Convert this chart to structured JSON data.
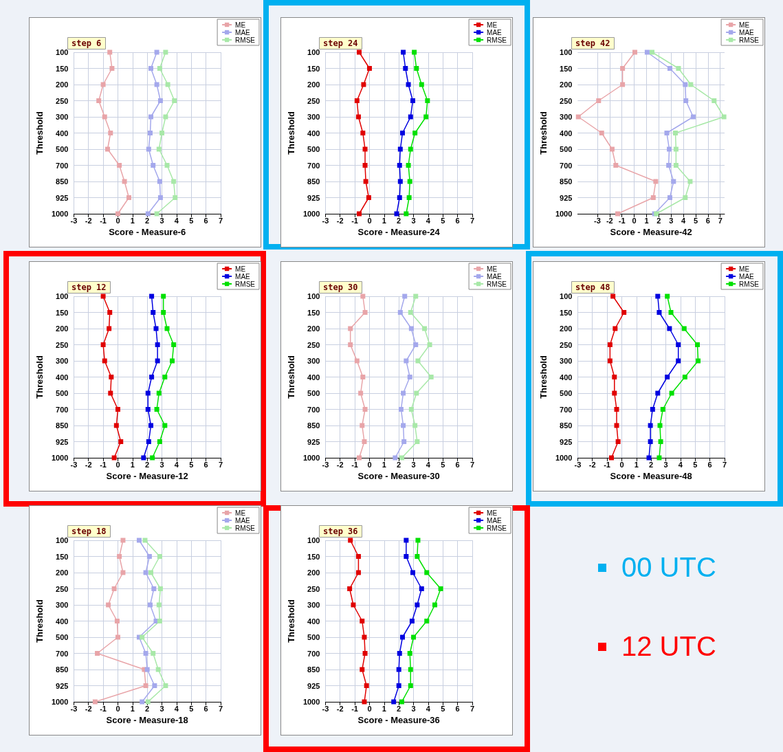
{
  "chart_data": [
    {
      "type": "line",
      "orientation": "horizontal",
      "title": "step 6",
      "xlabel": "Score - Measure-6",
      "ylabel": "Threshold",
      "categories": [
        "100",
        "150",
        "200",
        "250",
        "300",
        "400",
        "500",
        "700",
        "850",
        "925",
        "1000"
      ],
      "xlim": [
        -3,
        7
      ],
      "xticks": [
        -3,
        -2,
        -1,
        0,
        1,
        2,
        3,
        4,
        5,
        6,
        7
      ],
      "grid": true,
      "legend": "top right",
      "marker": "square",
      "series": [
        {
          "name": "ME",
          "color": "#e8a4a8",
          "values": [
            -0.55,
            -0.4,
            -1.0,
            -1.3,
            -0.9,
            -0.5,
            -0.7,
            0.1,
            0.45,
            0.75,
            0
          ]
        },
        {
          "name": "MAE",
          "color": "#a4a8ec",
          "values": [
            2.65,
            2.25,
            2.65,
            2.9,
            2.25,
            2.2,
            2.1,
            2.4,
            2.85,
            2.9,
            2.05
          ]
        },
        {
          "name": "RMSE",
          "color": "#a8e8a8",
          "values": [
            3.25,
            2.85,
            3.4,
            3.85,
            3.25,
            3.0,
            2.8,
            3.35,
            3.8,
            3.9,
            2.65
          ]
        }
      ]
    },
    {
      "type": "line",
      "orientation": "horizontal",
      "title": "step 24",
      "xlabel": "Score - Measure-24",
      "ylabel": "Threshold",
      "categories": [
        "100",
        "150",
        "200",
        "250",
        "300",
        "400",
        "500",
        "700",
        "850",
        "925",
        "1000"
      ],
      "xlim": [
        -3,
        7
      ],
      "xticks": [
        -3,
        -2,
        -1,
        0,
        1,
        2,
        3,
        4,
        5,
        6,
        7
      ],
      "grid": true,
      "legend": "top right",
      "marker": "square",
      "series": [
        {
          "name": "ME",
          "color": "#e00000",
          "values": [
            -0.7,
            0,
            -0.4,
            -0.85,
            -0.75,
            -0.45,
            -0.3,
            -0.3,
            -0.25,
            -0.05,
            -0.7
          ]
        },
        {
          "name": "MAE",
          "color": "#0000e0",
          "values": [
            2.3,
            2.45,
            2.65,
            2.95,
            2.8,
            2.25,
            2.1,
            2.05,
            2.1,
            2.05,
            1.85
          ]
        },
        {
          "name": "RMSE",
          "color": "#00e000",
          "values": [
            3.05,
            3.2,
            3.55,
            3.95,
            3.85,
            3.1,
            2.8,
            2.65,
            2.75,
            2.7,
            2.5
          ]
        }
      ]
    },
    {
      "type": "line",
      "orientation": "horizontal",
      "title": "step 42",
      "xlabel": "Score - Measure-42",
      "ylabel": "Threshold",
      "categories": [
        "100",
        "150",
        "200",
        "250",
        "300",
        "400",
        "500",
        "700",
        "850",
        "925",
        "1000"
      ],
      "xlim": [
        -4.6,
        7.35
      ],
      "xticks": [
        -3,
        -2,
        -1,
        0,
        1,
        2,
        3,
        4,
        5,
        6,
        7
      ],
      "grid": true,
      "legend": "top right",
      "marker": "square",
      "series": [
        {
          "name": "ME",
          "color": "#e8a4a8",
          "values": [
            0.05,
            -0.95,
            -0.95,
            -2.9,
            -4.55,
            -2.65,
            -1.8,
            -1.5,
            1.75,
            1.55,
            -1.35
          ]
        },
        {
          "name": "MAE",
          "color": "#a4a8ec",
          "values": [
            1.05,
            2.9,
            4.15,
            4.2,
            4.8,
            2.65,
            2.85,
            2.8,
            3.2,
            2.9,
            1.65
          ]
        },
        {
          "name": "RMSE",
          "color": "#a8e8a8",
          "values": [
            1.45,
            3.6,
            4.6,
            6.5,
            7.3,
            3.35,
            3.4,
            3.4,
            4.55,
            4.15,
            1.8
          ]
        }
      ]
    },
    {
      "type": "line",
      "orientation": "horizontal",
      "title": "step 12",
      "xlabel": "Score - Measure-12",
      "ylabel": "Threshold",
      "categories": [
        "100",
        "150",
        "200",
        "250",
        "300",
        "400",
        "500",
        "700",
        "850",
        "925",
        "1000"
      ],
      "xlim": [
        -3,
        7
      ],
      "xticks": [
        -3,
        -2,
        -1,
        0,
        1,
        2,
        3,
        4,
        5,
        6,
        7
      ],
      "grid": true,
      "legend": "top right",
      "marker": "square",
      "series": [
        {
          "name": "ME",
          "color": "#e00000",
          "values": [
            -1.0,
            -0.55,
            -0.6,
            -1.0,
            -0.9,
            -0.45,
            -0.5,
            0,
            -0.1,
            0.2,
            -0.25
          ]
        },
        {
          "name": "MAE",
          "color": "#0000e0",
          "values": [
            2.3,
            2.4,
            2.6,
            2.7,
            2.7,
            2.3,
            2.05,
            2.05,
            2.25,
            2.1,
            1.75
          ]
        },
        {
          "name": "RMSE",
          "color": "#00e000",
          "values": [
            3.1,
            3.1,
            3.35,
            3.8,
            3.7,
            3.2,
            2.8,
            2.65,
            3.2,
            2.85,
            2.35
          ]
        }
      ]
    },
    {
      "type": "line",
      "orientation": "horizontal",
      "title": "step 30",
      "xlabel": "Score - Measure-30",
      "ylabel": "Threshold",
      "categories": [
        "100",
        "150",
        "200",
        "250",
        "300",
        "400",
        "500",
        "700",
        "850",
        "925",
        "1000"
      ],
      "xlim": [
        -3,
        7
      ],
      "xticks": [
        -3,
        -2,
        -1,
        0,
        1,
        2,
        3,
        4,
        5,
        6,
        7
      ],
      "grid": true,
      "legend": "top right",
      "marker": "square",
      "series": [
        {
          "name": "ME",
          "color": "#e8a4a8",
          "values": [
            -0.45,
            -0.3,
            -1.3,
            -1.3,
            -0.85,
            -0.45,
            -0.6,
            -0.3,
            -0.5,
            -0.35,
            -0.7
          ]
        },
        {
          "name": "MAE",
          "color": "#a4a8ec",
          "values": [
            2.4,
            2.1,
            2.85,
            3.15,
            2.5,
            2.75,
            2.3,
            2.15,
            2.3,
            2.35,
            1.75
          ]
        },
        {
          "name": "RMSE",
          "color": "#a8e8a8",
          "values": [
            3.15,
            2.8,
            3.75,
            4.1,
            3.3,
            4.2,
            3.2,
            2.85,
            3.1,
            3.25,
            2.2
          ]
        }
      ]
    },
    {
      "type": "line",
      "orientation": "horizontal",
      "title": "step 48",
      "xlabel": "Score - Measure-48",
      "ylabel": "Threshold",
      "categories": [
        "100",
        "150",
        "200",
        "250",
        "300",
        "400",
        "500",
        "700",
        "850",
        "925",
        "1000"
      ],
      "xlim": [
        -3,
        7
      ],
      "xticks": [
        -3,
        -2,
        -1,
        0,
        1,
        2,
        3,
        4,
        5,
        6,
        7
      ],
      "grid": true,
      "legend": "top right",
      "marker": "square",
      "series": [
        {
          "name": "ME",
          "color": "#e00000",
          "values": [
            -0.6,
            0.15,
            -0.45,
            -0.8,
            -0.8,
            -0.5,
            -0.5,
            -0.35,
            -0.35,
            -0.25,
            -0.7
          ]
        },
        {
          "name": "MAE",
          "color": "#0000e0",
          "values": [
            2.45,
            2.55,
            3.25,
            3.85,
            3.85,
            3.1,
            2.45,
            2.1,
            1.95,
            1.95,
            1.85
          ]
        },
        {
          "name": "RMSE",
          "color": "#00e000",
          "values": [
            3.1,
            3.35,
            4.25,
            5.15,
            5.2,
            4.3,
            3.4,
            2.8,
            2.6,
            2.65,
            2.55
          ]
        }
      ]
    },
    {
      "type": "line",
      "orientation": "horizontal",
      "title": "step 18",
      "xlabel": "Score - Measure-18",
      "ylabel": "Threshold",
      "categories": [
        "100",
        "150",
        "200",
        "250",
        "300",
        "400",
        "500",
        "700",
        "850",
        "925",
        "1000"
      ],
      "xlim": [
        -3,
        7
      ],
      "xticks": [
        -3,
        -2,
        -1,
        0,
        1,
        2,
        3,
        4,
        5,
        6,
        7
      ],
      "grid": true,
      "legend": "top right",
      "marker": "square",
      "series": [
        {
          "name": "ME",
          "color": "#e8a4a8",
          "values": [
            0.35,
            0.1,
            0.35,
            -0.25,
            -0.65,
            -0.05,
            0,
            -1.4,
            1.8,
            1.9,
            -1.55
          ]
        },
        {
          "name": "MAE",
          "color": "#a4a8ec",
          "values": [
            1.45,
            2.15,
            1.9,
            2.45,
            2.2,
            2.6,
            1.45,
            1.9,
            2.0,
            2.5,
            1.65
          ]
        },
        {
          "name": "RMSE",
          "color": "#a8e8a8",
          "values": [
            1.85,
            2.85,
            2.25,
            2.9,
            2.8,
            2.85,
            1.65,
            2.4,
            2.75,
            3.25,
            2.05
          ]
        }
      ]
    },
    {
      "type": "line",
      "orientation": "horizontal",
      "title": "step 36",
      "xlabel": "Score - Measure-36",
      "ylabel": "Threshold",
      "categories": [
        "100",
        "150",
        "200",
        "250",
        "300",
        "400",
        "500",
        "700",
        "850",
        "925",
        "1000"
      ],
      "xlim": [
        -3,
        7
      ],
      "xticks": [
        -3,
        -2,
        -1,
        0,
        1,
        2,
        3,
        4,
        5,
        6,
        7
      ],
      "grid": true,
      "legend": "top right",
      "marker": "square",
      "series": [
        {
          "name": "ME",
          "color": "#e00000",
          "values": [
            -1.3,
            -0.75,
            -0.75,
            -1.35,
            -1.1,
            -0.5,
            -0.35,
            -0.3,
            -0.5,
            -0.2,
            -0.35
          ]
        },
        {
          "name": "MAE",
          "color": "#0000e0",
          "values": [
            2.5,
            2.5,
            2.95,
            3.55,
            3.25,
            2.9,
            2.25,
            2.05,
            2.0,
            2.0,
            1.65
          ]
        },
        {
          "name": "RMSE",
          "color": "#00e000",
          "values": [
            3.3,
            3.25,
            3.9,
            4.85,
            4.45,
            3.9,
            3.0,
            2.75,
            2.8,
            2.8,
            2.2
          ]
        }
      ]
    },
    {
      "type": "other",
      "annotations": [
        "00 UTC",
        "12 UTC"
      ]
    }
  ]
}
